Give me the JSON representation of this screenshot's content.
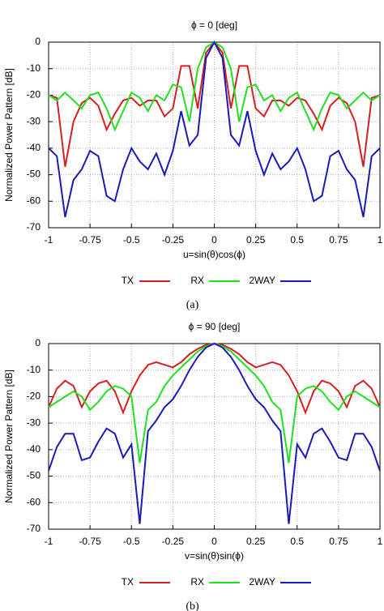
{
  "chart_data": [
    {
      "type": "line",
      "title": "ϕ = 0 [deg]",
      "x_label": "u=sin(θ)cos(ϕ)",
      "y_label": "Normalized Power Pattern  [dB]",
      "caption": "(a)",
      "x": [
        -1,
        -0.95,
        -0.9,
        -0.85,
        -0.8,
        -0.75,
        -0.7,
        -0.65,
        -0.6,
        -0.55,
        -0.5,
        -0.45,
        -0.4,
        -0.35,
        -0.3,
        -0.25,
        -0.2,
        -0.15,
        -0.1,
        -0.05,
        0,
        0.05,
        0.1,
        0.15,
        0.2,
        0.25,
        0.3,
        0.35,
        0.4,
        0.45,
        0.5,
        0.55,
        0.6,
        0.65,
        0.7,
        0.75,
        0.8,
        0.85,
        0.9,
        0.95,
        1
      ],
      "series": [
        {
          "name": "TX",
          "color": "#d42020",
          "values": [
            -20,
            -21,
            -47,
            -30,
            -23,
            -21,
            -24,
            -33,
            -27,
            -22,
            -21,
            -24,
            -22,
            -22,
            -28,
            -25,
            -9,
            -9,
            -25,
            -4,
            0,
            -4,
            -25,
            -9,
            -9,
            -25,
            -28,
            -22,
            -22,
            -24,
            -21,
            -22,
            -27,
            -33,
            -24,
            -21,
            -23,
            -30,
            -47,
            -21,
            -20
          ]
        },
        {
          "name": "RX",
          "color": "#20e020",
          "values": [
            -20,
            -22,
            -19,
            -22,
            -25,
            -20,
            -19,
            -25,
            -33,
            -26,
            -19,
            -21,
            -26,
            -20,
            -22,
            -16,
            -17,
            -30,
            -10,
            -2,
            0,
            -2,
            -10,
            -30,
            -17,
            -16,
            -22,
            -20,
            -26,
            -21,
            -19,
            -26,
            -33,
            -25,
            -19,
            -20,
            -25,
            -22,
            -19,
            -22,
            -20
          ]
        },
        {
          "name": "2WAY",
          "color": "#1a1ab8",
          "values": [
            -40,
            -43,
            -66,
            -52,
            -48,
            -41,
            -43,
            -58,
            -60,
            -48,
            -40,
            -45,
            -48,
            -42,
            -50,
            -41,
            -26,
            -39,
            -35,
            -6,
            0,
            -6,
            -35,
            -39,
            -26,
            -41,
            -50,
            -42,
            -48,
            -45,
            -40,
            -48,
            -60,
            -58,
            -43,
            -41,
            -48,
            -52,
            -66,
            -43,
            -40
          ]
        }
      ],
      "xlim": [
        -1,
        1
      ],
      "xticks": [
        -1,
        -0.75,
        -0.5,
        -0.25,
        0,
        0.25,
        0.5,
        0.75,
        1
      ],
      "ylim": [
        -70,
        0
      ],
      "yticks": [
        0,
        -10,
        -20,
        -30,
        -40,
        -50,
        -60,
        -70
      ],
      "grid": true
    },
    {
      "type": "line",
      "title": "ϕ = 90 [deg]",
      "x_label": "v=sin(θ)sin(ϕ)",
      "y_label": "Normalized Power Pattern  [dB]",
      "caption": "(b)",
      "x": [
        -1,
        -0.95,
        -0.9,
        -0.85,
        -0.8,
        -0.75,
        -0.7,
        -0.65,
        -0.6,
        -0.55,
        -0.5,
        -0.45,
        -0.4,
        -0.35,
        -0.3,
        -0.25,
        -0.2,
        -0.15,
        -0.1,
        -0.05,
        0,
        0.05,
        0.1,
        0.15,
        0.2,
        0.25,
        0.3,
        0.35,
        0.4,
        0.45,
        0.5,
        0.55,
        0.6,
        0.65,
        0.7,
        0.75,
        0.8,
        0.85,
        0.9,
        0.95,
        1
      ],
      "series": [
        {
          "name": "TX",
          "color": "#d42020",
          "values": [
            -24,
            -17,
            -14,
            -16,
            -24,
            -18,
            -15,
            -14,
            -18,
            -26,
            -18,
            -12,
            -8,
            -7,
            -8,
            -9,
            -7,
            -4,
            -2,
            -0.5,
            0,
            -0.5,
            -2,
            -4,
            -7,
            -9,
            -8,
            -7,
            -8,
            -12,
            -18,
            -26,
            -18,
            -14,
            -15,
            -18,
            -24,
            -16,
            -14,
            -17,
            -24
          ]
        },
        {
          "name": "RX",
          "color": "#20e020",
          "values": [
            -24,
            -22,
            -20,
            -18,
            -20,
            -25,
            -22,
            -18,
            -16,
            -17,
            -20,
            -45,
            -25,
            -22,
            -16,
            -12,
            -9,
            -6,
            -3,
            -1,
            0,
            -1,
            -3,
            -6,
            -9,
            -12,
            -16,
            -22,
            -25,
            -45,
            -20,
            -17,
            -16,
            -18,
            -22,
            -25,
            -20,
            -18,
            -20,
            -22,
            -24
          ]
        },
        {
          "name": "2WAY",
          "color": "#1a1ab8",
          "values": [
            -48,
            -39,
            -34,
            -34,
            -44,
            -43,
            -37,
            -32,
            -34,
            -43,
            -38,
            -68,
            -33,
            -29,
            -24,
            -21,
            -16,
            -10,
            -5,
            -1.5,
            0,
            -1.5,
            -5,
            -10,
            -16,
            -21,
            -24,
            -29,
            -33,
            -68,
            -38,
            -43,
            -34,
            -32,
            -37,
            -43,
            -44,
            -34,
            -34,
            -39,
            -48
          ]
        }
      ],
      "xlim": [
        -1,
        1
      ],
      "xticks": [
        -1,
        -0.75,
        -0.5,
        -0.25,
        0,
        0.25,
        0.5,
        0.75,
        1
      ],
      "ylim": [
        -70,
        0
      ],
      "yticks": [
        0,
        -10,
        -20,
        -30,
        -40,
        -50,
        -60,
        -70
      ],
      "grid": true
    }
  ]
}
